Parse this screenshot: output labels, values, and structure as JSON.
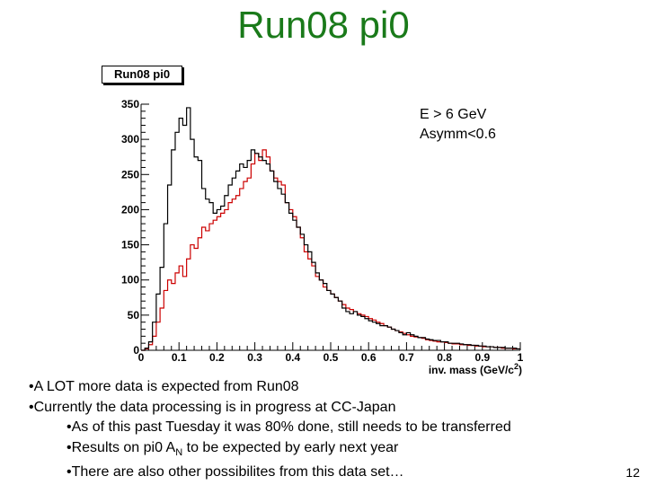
{
  "slide": {
    "title": "Run08 pi0",
    "page_number": "12",
    "bullets": [
      {
        "text": "•A LOT more data is expected from Run08",
        "level": 0
      },
      {
        "text": "•Currently the data processing is in progress at CC-Japan",
        "level": 0
      },
      {
        "text": "•As of this past Tuesday it was 80% done, still needs to be transferred",
        "level": 1
      },
      {
        "text": "•Results on pi0 A_N to be expected by early next year",
        "level": 1
      },
      {
        "text": "•There are also other possibilites from this data set…",
        "level": 1
      }
    ],
    "subscript_bullet": {
      "pre": "•Results on pi0 A",
      "sub": "N",
      "post": " to be expected by early next year"
    }
  },
  "chart_data": {
    "type": "line",
    "title": "Run08 pi0",
    "annotations": [
      "E > 6 GeV",
      "Asymm<0.6"
    ],
    "xlabel": "inv. mass (GeV/c",
    "xlabel_superscript": "2",
    "xlabel_close": ")",
    "ylabel": "",
    "xlim": [
      0,
      1
    ],
    "ylim": [
      0,
      350
    ],
    "x_ticks": [
      "0",
      "0.1",
      "0.2",
      "0.3",
      "0.4",
      "0.5",
      "0.6",
      "0.7",
      "0.8",
      "0.9",
      "1"
    ],
    "y_ticks": [
      "0",
      "50",
      "100",
      "150",
      "200",
      "250",
      "300",
      "350"
    ],
    "grid": false,
    "colors": {
      "black_series": "#000000",
      "red_series": "#cc0000"
    },
    "series": [
      {
        "color": "#000000",
        "x_bin_low": [
          0.0,
          0.01,
          0.02,
          0.03,
          0.04,
          0.05,
          0.06,
          0.07,
          0.08,
          0.09,
          0.1,
          0.11,
          0.12,
          0.13,
          0.14,
          0.15,
          0.16,
          0.17,
          0.18,
          0.19,
          0.2,
          0.21,
          0.22,
          0.23,
          0.24,
          0.25,
          0.26,
          0.27,
          0.28,
          0.29,
          0.3,
          0.31,
          0.32,
          0.33,
          0.34,
          0.35,
          0.36,
          0.37,
          0.38,
          0.39,
          0.4,
          0.41,
          0.42,
          0.43,
          0.44,
          0.45,
          0.46,
          0.47,
          0.48,
          0.49,
          0.5,
          0.51,
          0.52,
          0.53,
          0.54,
          0.55,
          0.56,
          0.57,
          0.58,
          0.59,
          0.6,
          0.61,
          0.62,
          0.63,
          0.64,
          0.65,
          0.66,
          0.67,
          0.68,
          0.69,
          0.7,
          0.71,
          0.72,
          0.73,
          0.74,
          0.75,
          0.76,
          0.77,
          0.78,
          0.79,
          0.8,
          0.81,
          0.82,
          0.83,
          0.84,
          0.85,
          0.86,
          0.87,
          0.88,
          0.89,
          0.9,
          0.91,
          0.92,
          0.93,
          0.94,
          0.95,
          0.96,
          0.97,
          0.98,
          0.99
        ],
        "values": [
          0,
          3,
          12,
          40,
          80,
          118,
          180,
          235,
          285,
          310,
          330,
          320,
          345,
          300,
          275,
          270,
          230,
          215,
          210,
          195,
          200,
          205,
          220,
          235,
          245,
          255,
          265,
          260,
          270,
          285,
          280,
          275,
          270,
          265,
          255,
          240,
          230,
          222,
          210,
          195,
          185,
          175,
          165,
          150,
          140,
          125,
          110,
          100,
          95,
          85,
          80,
          75,
          70,
          60,
          55,
          52,
          55,
          50,
          48,
          45,
          42,
          40,
          38,
          35,
          35,
          33,
          30,
          28,
          25,
          22,
          25,
          22,
          20,
          18,
          18,
          16,
          15,
          14,
          14,
          12,
          12,
          10,
          10,
          10,
          9,
          8,
          8,
          7,
          7,
          6,
          6,
          5,
          5,
          4,
          4,
          4,
          3,
          3,
          3,
          2
        ]
      },
      {
        "color": "#cc0000",
        "x_bin_low": [
          0.0,
          0.01,
          0.02,
          0.03,
          0.04,
          0.05,
          0.06,
          0.07,
          0.08,
          0.09,
          0.1,
          0.11,
          0.12,
          0.13,
          0.14,
          0.15,
          0.16,
          0.17,
          0.18,
          0.19,
          0.2,
          0.21,
          0.22,
          0.23,
          0.24,
          0.25,
          0.26,
          0.27,
          0.28,
          0.29,
          0.3,
          0.31,
          0.32,
          0.33,
          0.34,
          0.35,
          0.36,
          0.37,
          0.38,
          0.39,
          0.4,
          0.41,
          0.42,
          0.43,
          0.44,
          0.45,
          0.46,
          0.47,
          0.48,
          0.49,
          0.5,
          0.51,
          0.52,
          0.53,
          0.54,
          0.55,
          0.56,
          0.57,
          0.58,
          0.59,
          0.6,
          0.61,
          0.62,
          0.63,
          0.64,
          0.65,
          0.66,
          0.67,
          0.68,
          0.69,
          0.7,
          0.71,
          0.72,
          0.73,
          0.74,
          0.75,
          0.76,
          0.77,
          0.78,
          0.79,
          0.8,
          0.81,
          0.82,
          0.83,
          0.84,
          0.85,
          0.86,
          0.87,
          0.88,
          0.89,
          0.9,
          0.91,
          0.92,
          0.93,
          0.94,
          0.95,
          0.96,
          0.97,
          0.98,
          0.99
        ],
        "values": [
          0,
          2,
          8,
          20,
          40,
          60,
          85,
          100,
          95,
          110,
          120,
          105,
          130,
          150,
          145,
          160,
          175,
          170,
          180,
          185,
          190,
          195,
          200,
          210,
          215,
          220,
          230,
          240,
          245,
          265,
          280,
          270,
          285,
          275,
          255,
          245,
          240,
          235,
          210,
          200,
          190,
          175,
          160,
          140,
          130,
          120,
          105,
          100,
          90,
          85,
          80,
          75,
          70,
          65,
          60,
          58,
          55,
          52,
          50,
          48,
          45,
          43,
          40,
          38,
          35,
          33,
          30,
          28,
          26,
          24,
          22,
          20,
          19,
          18,
          17,
          15,
          14,
          13,
          12,
          12,
          11,
          10,
          9,
          9,
          8,
          8,
          7,
          7,
          6,
          6,
          5,
          5,
          5,
          4,
          4,
          3,
          3,
          3,
          2,
          2
        ]
      }
    ]
  }
}
